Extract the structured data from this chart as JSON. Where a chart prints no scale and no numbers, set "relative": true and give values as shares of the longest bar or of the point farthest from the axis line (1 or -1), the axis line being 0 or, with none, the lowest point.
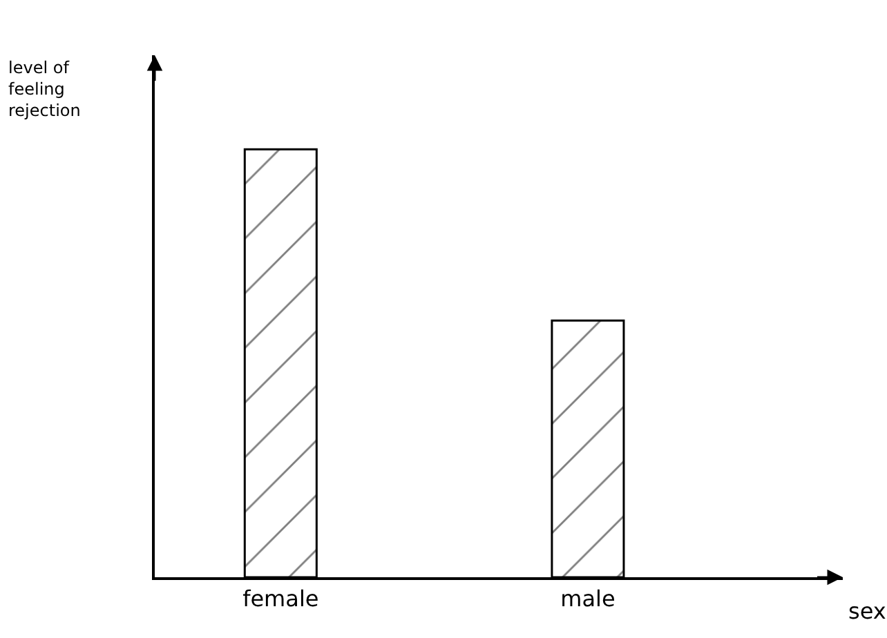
{
  "chart_data": {
    "type": "bar",
    "relative": true,
    "xlabel": "sex",
    "ylabel": "level of feeling rejection",
    "categories": [
      "female",
      "male"
    ],
    "values": [
      1,
      0.6
    ],
    "color": "#000000",
    "legend": false
  }
}
